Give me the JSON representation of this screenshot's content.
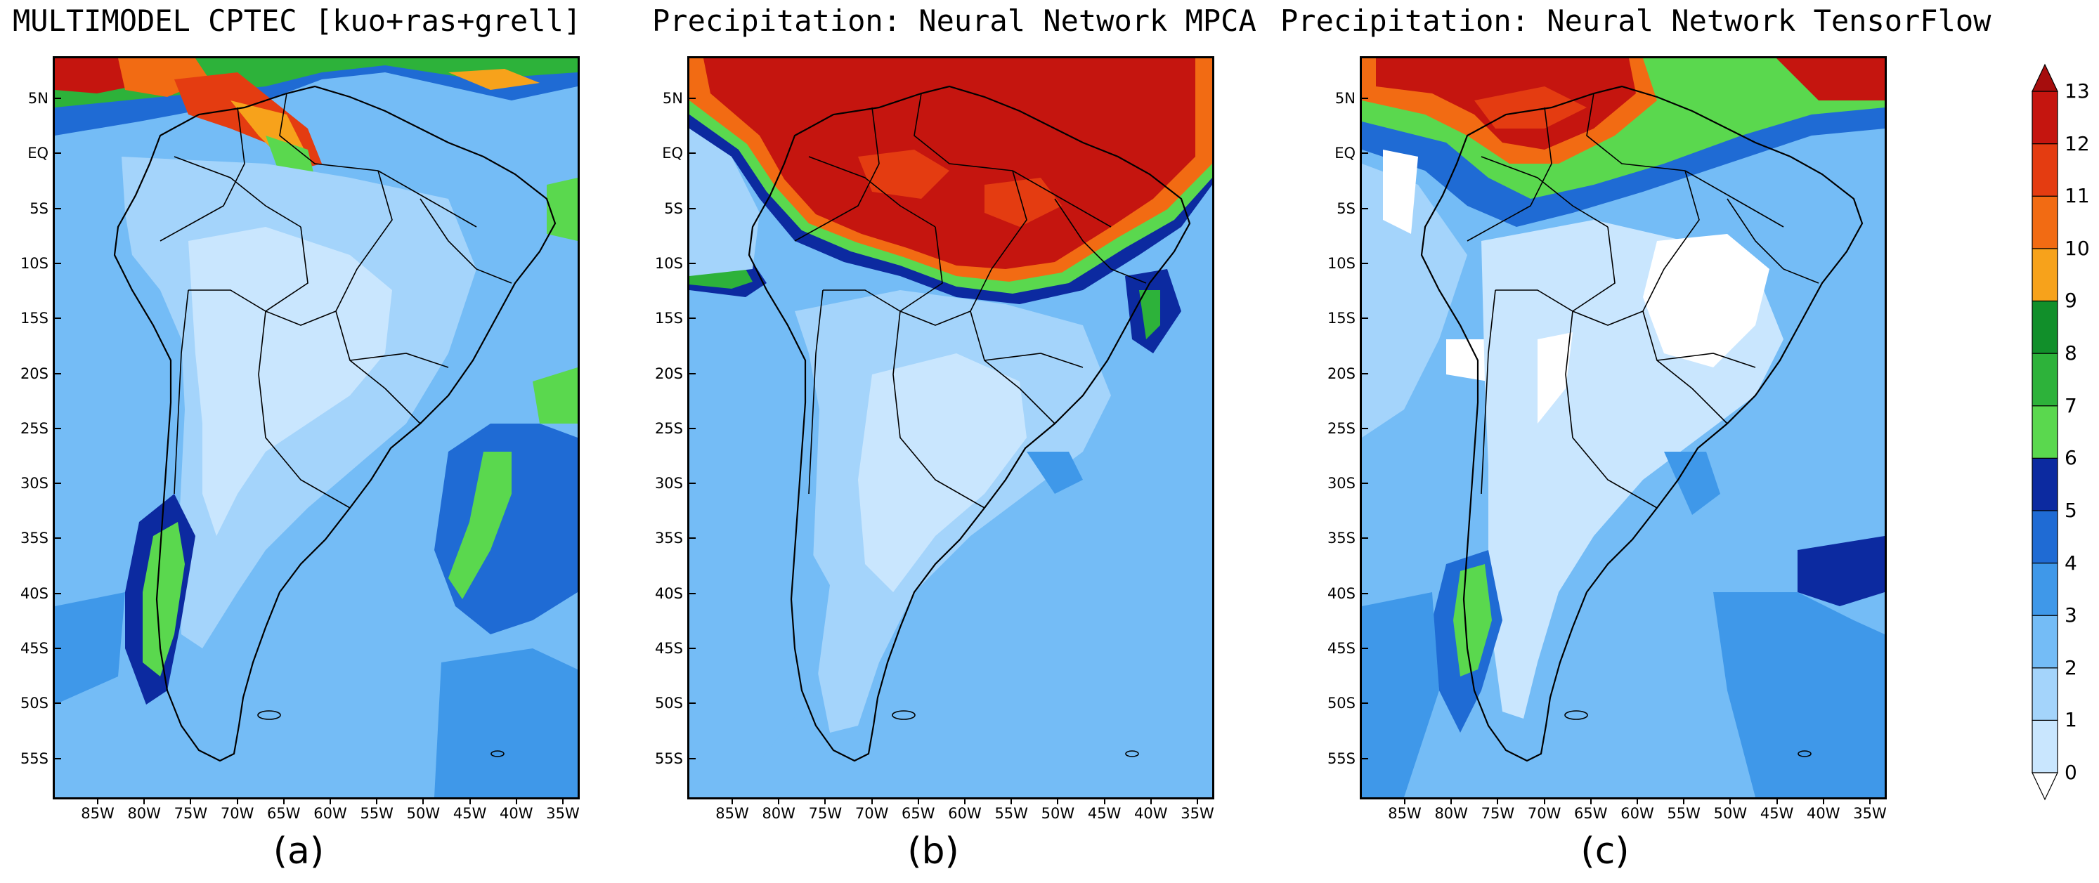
{
  "panels": [
    {
      "title": "MULTIMODEL CPTEC [kuo+ras+grell]",
      "label": "(a)"
    },
    {
      "title": "Precipitation: Neural Network MPCA",
      "label": "(b)"
    },
    {
      "title": "Precipitation: Neural Network TensorFlow",
      "label": "(c)"
    }
  ],
  "lat_ticks": [
    "5N",
    "EQ",
    "5S",
    "10S",
    "15S",
    "20S",
    "25S",
    "30S",
    "35S",
    "40S",
    "45S",
    "50S",
    "55S"
  ],
  "lon_ticks": [
    "85W",
    "80W",
    "75W",
    "70W",
    "65W",
    "60W",
    "55W",
    "50W",
    "45W",
    "40W",
    "35W"
  ],
  "colorbar": {
    "labels": [
      "0",
      "1",
      "2",
      "3",
      "4",
      "5",
      "6",
      "7",
      "8",
      "9",
      "10",
      "11",
      "12",
      "13"
    ],
    "colors": [
      "#ffffff",
      "#c9e6fe",
      "#a4d4fb",
      "#74bcf6",
      "#3f98e9",
      "#1f6bd4",
      "#0c2aa0",
      "#5ad84e",
      "#2db23a",
      "#118f2a",
      "#f7a21b",
      "#f26b13",
      "#e43c11",
      "#c5150f",
      "#a60d0d"
    ]
  },
  "map_colors": {
    "white": "#ffffff",
    "c1": "#c9e6fe",
    "c2": "#a4d4fb",
    "c3": "#74bcf6",
    "c4": "#3f98e9",
    "c5": "#1f6bd4",
    "c6": "#0c2aa0",
    "g7": "#5ad84e",
    "g8": "#2db23a",
    "g9": "#118f2a",
    "o10": "#f7a21b",
    "o11": "#f26b13",
    "r12": "#e43c11",
    "r13": "#c5150f"
  }
}
